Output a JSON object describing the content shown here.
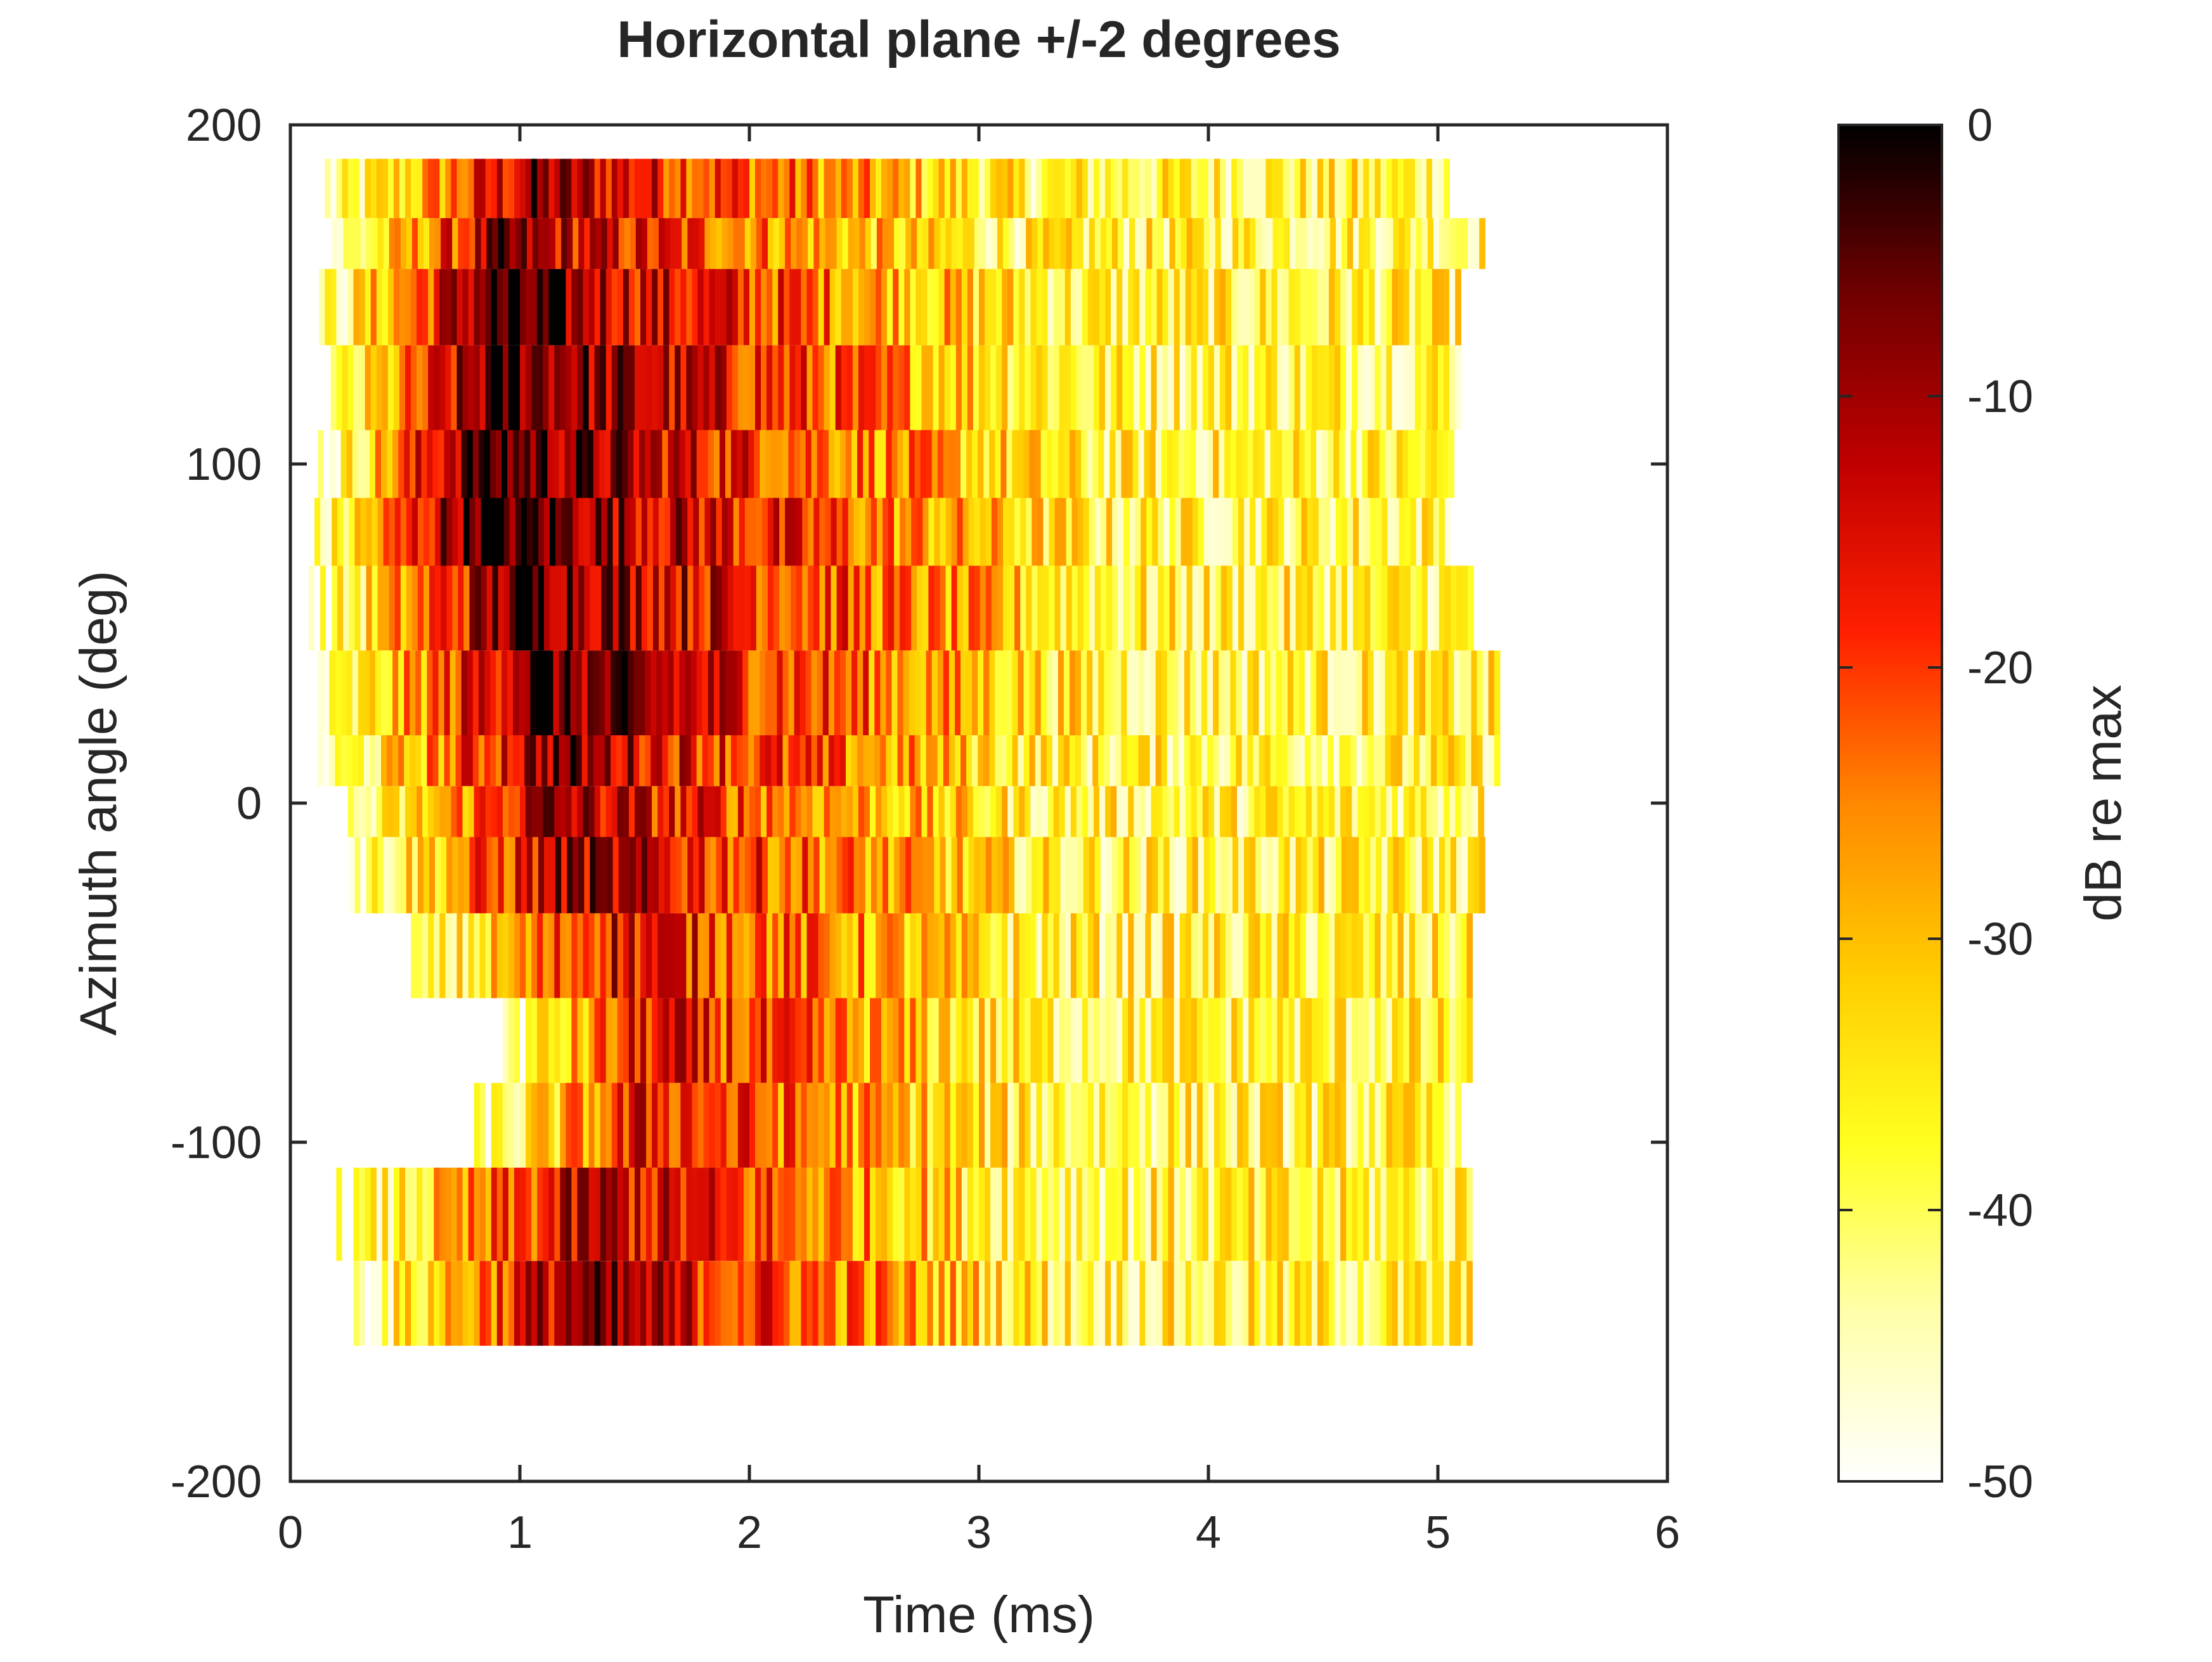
{
  "chart_data": {
    "type": "heatmap",
    "title": "Horizontal plane +/-2 degrees",
    "xlabel": "Time (ms)",
    "ylabel": "Azimuth angle (deg)",
    "xlim": [
      0,
      6
    ],
    "ylim": [
      -200,
      200
    ],
    "x_ticks": [
      "0",
      "1",
      "2",
      "3",
      "4",
      "5",
      "6"
    ],
    "y_ticks": [
      "-200",
      "-100",
      "0",
      "100",
      "200"
    ],
    "colorbar": {
      "label": "dB re max",
      "range": [
        -50,
        0
      ],
      "ticks": [
        "0",
        "-10",
        "-20",
        "-30",
        "-40",
        "-50"
      ],
      "colormap": "hot (reversed)"
    },
    "rows": [
      {
        "azimuth": 180,
        "x_start": 0.15,
        "x_end": 5.05,
        "peak_time": 1.05,
        "peak_db": -10
      },
      {
        "azimuth": 165,
        "x_start": 0.18,
        "x_end": 5.2,
        "peak_time": 0.9,
        "peak_db": -10
      },
      {
        "azimuth": 150,
        "x_start": 0.1,
        "x_end": 5.1,
        "peak_time": 0.85,
        "peak_db": -5
      },
      {
        "azimuth": 120,
        "x_start": 0.15,
        "x_end": 5.1,
        "peak_time": 0.9,
        "peak_db": -4
      },
      {
        "azimuth": 100,
        "x_start": 0.12,
        "x_end": 5.05,
        "peak_time": 0.8,
        "peak_db": -3
      },
      {
        "azimuth": 80,
        "x_start": 0.08,
        "x_end": 5.05,
        "peak_time": 0.8,
        "peak_db": -2
      },
      {
        "azimuth": 60,
        "x_start": 0.08,
        "x_end": 5.15,
        "peak_time": 1.0,
        "peak_db": -4
      },
      {
        "azimuth": 30,
        "x_start": 0.12,
        "x_end": 5.25,
        "peak_time": 1.05,
        "peak_db": -5
      },
      {
        "azimuth": 10,
        "x_start": 0.12,
        "x_end": 5.25,
        "peak_time": 1.1,
        "peak_db": -8
      },
      {
        "azimuth": 0,
        "x_start": 0.25,
        "x_end": 5.2,
        "peak_time": 1.1,
        "peak_db": -10
      },
      {
        "azimuth": -20,
        "x_start": 0.18,
        "x_end": 5.2,
        "peak_time": 1.2,
        "peak_db": -10
      },
      {
        "azimuth": -45,
        "x_start": 0.5,
        "x_end": 5.15,
        "peak_time": 1.4,
        "peak_db": -14
      },
      {
        "azimuth": -70,
        "x_start": 0.9,
        "x_end": 5.15,
        "peak_time": 1.55,
        "peak_db": -16
      },
      {
        "azimuth": -95,
        "x_start": 0.8,
        "x_end": 5.1,
        "peak_time": 1.55,
        "peak_db": -16
      },
      {
        "azimuth": -120,
        "x_start": 0.2,
        "x_end": 5.15,
        "peak_time": 1.3,
        "peak_db": -12
      },
      {
        "azimuth": -150,
        "x_start": 0.25,
        "x_end": 5.15,
        "peak_time": 1.2,
        "peak_db": -9
      }
    ]
  }
}
